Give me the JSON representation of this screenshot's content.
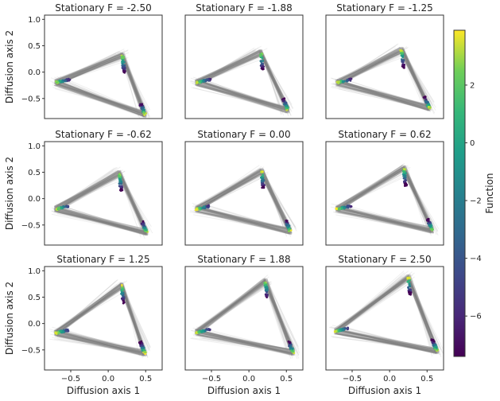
{
  "chart_data": {
    "type": "scatter",
    "titles": [
      "Stationary F = -2.50",
      "Stationary F = -1.88",
      "Stationary F = -1.25",
      "Stationary F = -0.62",
      "Stationary F = 0.00",
      "Stationary F = 0.62",
      "Stationary F = 1.25",
      "Stationary F = 1.88",
      "Stationary F = 2.50"
    ],
    "stationary_F": [
      -2.5,
      -1.88,
      -1.25,
      -0.62,
      0.0,
      0.62,
      1.25,
      1.88,
      2.5
    ],
    "xlabel": "Diffusion axis 1",
    "ylabel": "Diffusion axis 2",
    "xlim": [
      -0.85,
      0.72
    ],
    "ylim": [
      -0.88,
      1.08
    ],
    "xticks": [
      -0.5,
      0.0,
      0.5
    ],
    "xtick_labels": [
      "−0.5",
      "0.0",
      "0.5"
    ],
    "yticks": [
      -0.5,
      0.0,
      0.5,
      1.0
    ],
    "ytick_labels": [
      "−0.5",
      "0.0",
      "0.5",
      "1.0"
    ],
    "colorbar": {
      "label": "Function",
      "min": -7.4,
      "max": 3.9,
      "ticks": [
        2,
        0,
        -2,
        -4,
        -6
      ],
      "tick_labels": [
        "2",
        "0",
        "−2",
        "−4",
        "−6"
      ],
      "colormap": "viridis"
    },
    "triangle_vertices": [
      {
        "top": [
          0.19,
          0.32
        ],
        "left": [
          -0.7,
          -0.2
        ],
        "bottom": [
          0.49,
          -0.8
        ]
      },
      {
        "top": [
          0.16,
          0.37
        ],
        "left": [
          -0.7,
          -0.2
        ],
        "bottom": [
          0.52,
          -0.72
        ]
      },
      {
        "top": [
          0.16,
          0.42
        ],
        "left": [
          -0.7,
          -0.2
        ],
        "bottom": [
          0.53,
          -0.68
        ]
      },
      {
        "top": [
          0.15,
          0.48
        ],
        "left": [
          -0.7,
          -0.2
        ],
        "bottom": [
          0.51,
          -0.64
        ]
      },
      {
        "top": [
          0.17,
          0.52
        ],
        "left": [
          -0.7,
          -0.2
        ],
        "bottom": [
          0.55,
          -0.62
        ]
      },
      {
        "top": [
          0.19,
          0.58
        ],
        "left": [
          -0.7,
          -0.2
        ],
        "bottom": [
          0.57,
          -0.6
        ]
      },
      {
        "top": [
          0.18,
          0.72
        ],
        "left": [
          -0.7,
          -0.18
        ],
        "bottom": [
          0.49,
          -0.56
        ]
      },
      {
        "top": [
          0.22,
          0.8
        ],
        "left": [
          -0.7,
          -0.17
        ],
        "bottom": [
          0.59,
          -0.55
        ]
      },
      {
        "top": [
          0.25,
          0.88
        ],
        "left": [
          -0.72,
          -0.15
        ],
        "bottom": [
          0.63,
          -0.52
        ]
      }
    ],
    "grid": false,
    "colors": {
      "edge_gray": "#808080",
      "background": "#ffffff"
    }
  }
}
